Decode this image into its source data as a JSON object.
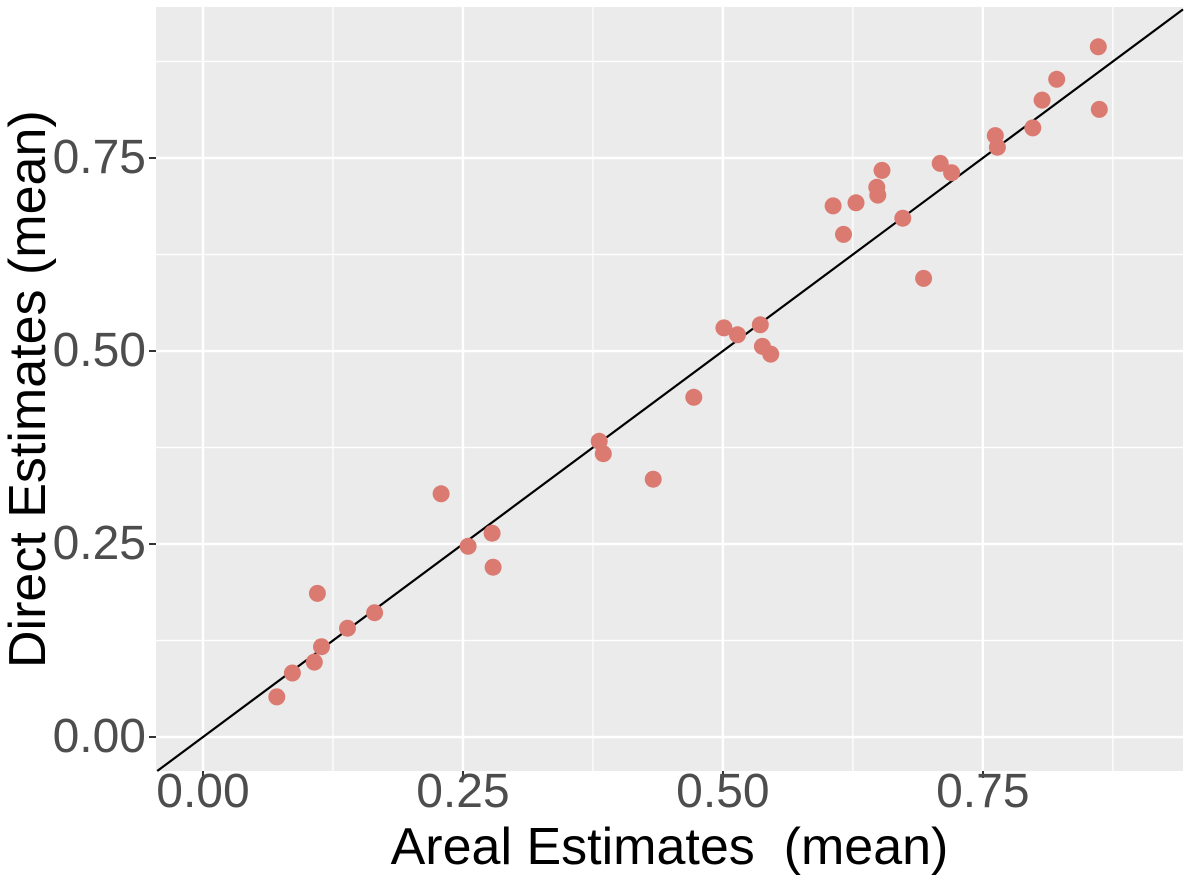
{
  "chart_data": {
    "type": "scatter",
    "title": "",
    "xlabel": "Areal Estimates  (mean)",
    "ylabel": "Direct Estimates (mean)",
    "xlim": [
      -0.0452,
      0.9425
    ],
    "ylim": [
      -0.044,
      0.9456
    ],
    "grid": true,
    "legend": "none",
    "panel_bg": "#EBEBEB",
    "grid_color": "#FFFFFF",
    "tick_color": "#333333",
    "tick_label_color": "#4D4D4D",
    "point_color": "#DA7A70",
    "x_ticks": {
      "values": [
        0,
        0.25,
        0.5,
        0.75
      ],
      "labels": [
        "0.00",
        "0.25",
        "0.50",
        "0.75"
      ]
    },
    "y_ticks": {
      "values": [
        0,
        0.25,
        0.5,
        0.75
      ],
      "labels": [
        "0.00",
        "0.25",
        "0.50",
        "0.75"
      ]
    },
    "x_minor_ticks": [
      0.125,
      0.375,
      0.625,
      0.875
    ],
    "y_minor_ticks": [
      0.125,
      0.375,
      0.625,
      0.875
    ],
    "reference_line": {
      "type": "identity",
      "slope": 1,
      "intercept": 0,
      "color": "#000000"
    },
    "points": [
      [
        0.071,
        0.052
      ],
      [
        0.086,
        0.083
      ],
      [
        0.107,
        0.097
      ],
      [
        0.114,
        0.117
      ],
      [
        0.139,
        0.141
      ],
      [
        0.165,
        0.161
      ],
      [
        0.11,
        0.186
      ],
      [
        0.229,
        0.315
      ],
      [
        0.255,
        0.247
      ],
      [
        0.278,
        0.264
      ],
      [
        0.279,
        0.22
      ],
      [
        0.381,
        0.383
      ],
      [
        0.385,
        0.367
      ],
      [
        0.433,
        0.334
      ],
      [
        0.472,
        0.44
      ],
      [
        0.501,
        0.53
      ],
      [
        0.514,
        0.521
      ],
      [
        0.536,
        0.534
      ],
      [
        0.538,
        0.506
      ],
      [
        0.546,
        0.496
      ],
      [
        0.606,
        0.688
      ],
      [
        0.616,
        0.651
      ],
      [
        0.628,
        0.692
      ],
      [
        0.648,
        0.712
      ],
      [
        0.649,
        0.702
      ],
      [
        0.653,
        0.734
      ],
      [
        0.673,
        0.672
      ],
      [
        0.693,
        0.594
      ],
      [
        0.709,
        0.743
      ],
      [
        0.72,
        0.731
      ],
      [
        0.762,
        0.779
      ],
      [
        0.764,
        0.764
      ],
      [
        0.798,
        0.789
      ],
      [
        0.807,
        0.825
      ],
      [
        0.821,
        0.852
      ],
      [
        0.861,
        0.894
      ],
      [
        0.862,
        0.813
      ]
    ]
  }
}
